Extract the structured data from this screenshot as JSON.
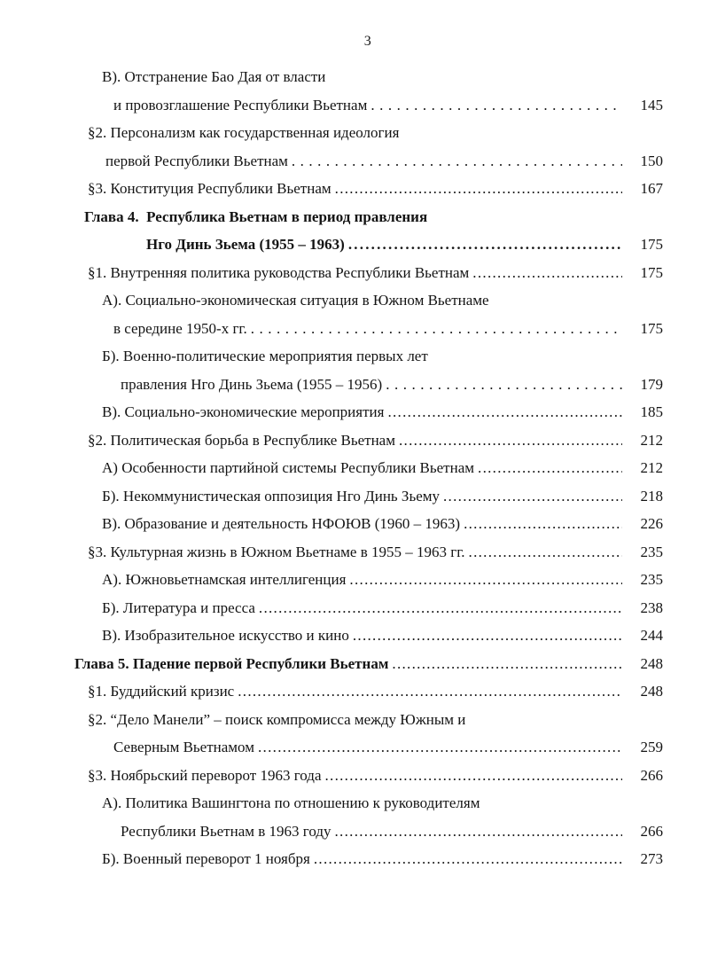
{
  "page_number": "3",
  "toc": {
    "entries": [
      {
        "text": "В). Отстранение Бао Дая от власти",
        "level": "letter",
        "leader": "none",
        "page": "",
        "bold": false
      },
      {
        "text": "и провозглашение Республики Вьетнам",
        "level": "cont2",
        "leader": "ellipsis",
        "page": "145",
        "bold": false
      },
      {
        "text": "§2. Персонализм как государственная идеология",
        "level": "section",
        "leader": "none",
        "page": "",
        "bold": false
      },
      {
        "text": "первой Республики Вьетнам",
        "level": "cont1",
        "leader": "ellipsis",
        "page": "150",
        "bold": false
      },
      {
        "text": "§3. Конституция Республики Вьетнам",
        "level": "section",
        "leader": "dots",
        "page": "167",
        "bold": false
      },
      {
        "text": "Глава 4.  Республика Вьетнам в период правления",
        "level": "chapter4",
        "leader": "none",
        "page": "",
        "bold": true
      },
      {
        "text": "Нго Динь Зьема (1955 – 1963)",
        "level": "ngo",
        "leader": "boldgap",
        "page": "175",
        "bold": true
      },
      {
        "text": "§1. Внутренняя политика руководства Республики Вьетнам",
        "level": "section",
        "leader": "dots",
        "page": "175",
        "bold": false
      },
      {
        "text": "А). Социально-экономическая ситуация в Южном Вьетнаме",
        "level": "letter",
        "leader": "none",
        "page": "",
        "bold": false
      },
      {
        "text": "в середине 1950-х гг.",
        "level": "cont2",
        "leader": "ellipsis",
        "page": "175",
        "bold": false
      },
      {
        "text": "Б). Военно-политические мероприятия первых лет",
        "level": "letter",
        "leader": "none",
        "page": "",
        "bold": false
      },
      {
        "text": "правления Нго Динь Зьема (1955 – 1956)",
        "level": "cont3",
        "leader": "ellipsis",
        "page": "179",
        "bold": false
      },
      {
        "text": "В). Социально-экономические мероприятия",
        "level": "letter",
        "leader": "dots",
        "page": "185",
        "bold": false
      },
      {
        "text": "§2. Политическая борьба в Республике Вьетнам",
        "level": "section",
        "leader": "dots",
        "page": "212",
        "bold": false
      },
      {
        "text": "А) Особенности партийной системы Республики Вьетнам",
        "level": "letter",
        "leader": "dots",
        "page": "212",
        "bold": false
      },
      {
        "text": "Б). Некоммунистическая оппозиция Нго Динь Зьему",
        "level": "letter",
        "leader": "dots",
        "page": "218",
        "bold": false
      },
      {
        "text": "В). Образование и деятельность НФОЮВ (1960 – 1963)",
        "level": "letter",
        "leader": "dots",
        "page": "226",
        "bold": false
      },
      {
        "text": "§3. Культурная жизнь в Южном Вьетнаме в 1955 – 1963 гг.",
        "level": "section",
        "leader": "dots",
        "page": "235",
        "bold": false
      },
      {
        "text": "А). Южновьетнамская интеллигенция",
        "level": "letter",
        "leader": "dots",
        "page": "235",
        "bold": false
      },
      {
        "text": "Б). Литература и пресса",
        "level": "letter",
        "leader": "dots",
        "page": "238",
        "bold": false
      },
      {
        "text": "В). Изобразительное искусство и кино",
        "level": "letter",
        "leader": "dots",
        "page": "244",
        "bold": false
      },
      {
        "text": "Глава 5. Падение первой Республики Вьетнам",
        "level": "chapter5",
        "leader": "dots",
        "page": "248",
        "bold": true
      },
      {
        "text": "§1. Буддийский кризис",
        "level": "section",
        "leader": "dots",
        "page": "248",
        "bold": false
      },
      {
        "text": "§2. “Дело Манели” – поиск компромисса между Южным и",
        "level": "section",
        "leader": "none",
        "page": "",
        "bold": false
      },
      {
        "text": "Северным Вьетнамом",
        "level": "cont2",
        "leader": "dots",
        "page": "259",
        "bold": false
      },
      {
        "text": "§3. Ноябрьский переворот 1963 года",
        "level": "section",
        "leader": "dots",
        "page": "266",
        "bold": false
      },
      {
        "text": "А). Политика Вашингтона по отношению к руководителям",
        "level": "letter",
        "leader": "none",
        "page": "",
        "bold": false
      },
      {
        "text": "Республики Вьетнам в 1963 году",
        "level": "cont3",
        "leader": "dots",
        "page": "266",
        "bold": false
      },
      {
        "text": "Б). Военный переворот 1 ноября",
        "level": "letter",
        "leader": "dots",
        "page": "273",
        "bold": false
      }
    ]
  }
}
